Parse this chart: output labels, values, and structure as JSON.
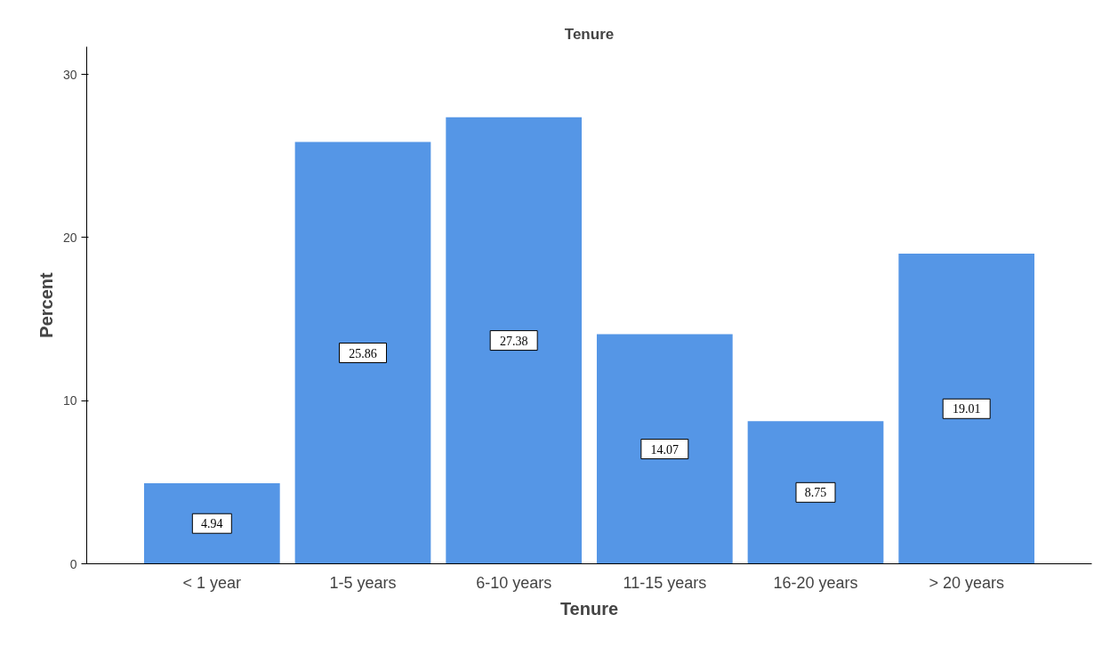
{
  "chart_data": {
    "type": "bar",
    "title": "Tenure",
    "xlabel": "Tenure",
    "ylabel": "Percent",
    "categories": [
      "< 1 year",
      "1-5 years",
      "6-10 years",
      "11-15 years",
      "16-20 years",
      "> 20 years"
    ],
    "values": [
      4.94,
      25.86,
      27.38,
      14.07,
      8.75,
      19.01
    ],
    "color": "#5596e6",
    "ylim": [
      0,
      31.7
    ],
    "yticks": [
      0,
      10,
      20,
      30
    ],
    "data_labels": true,
    "grid": false
  }
}
